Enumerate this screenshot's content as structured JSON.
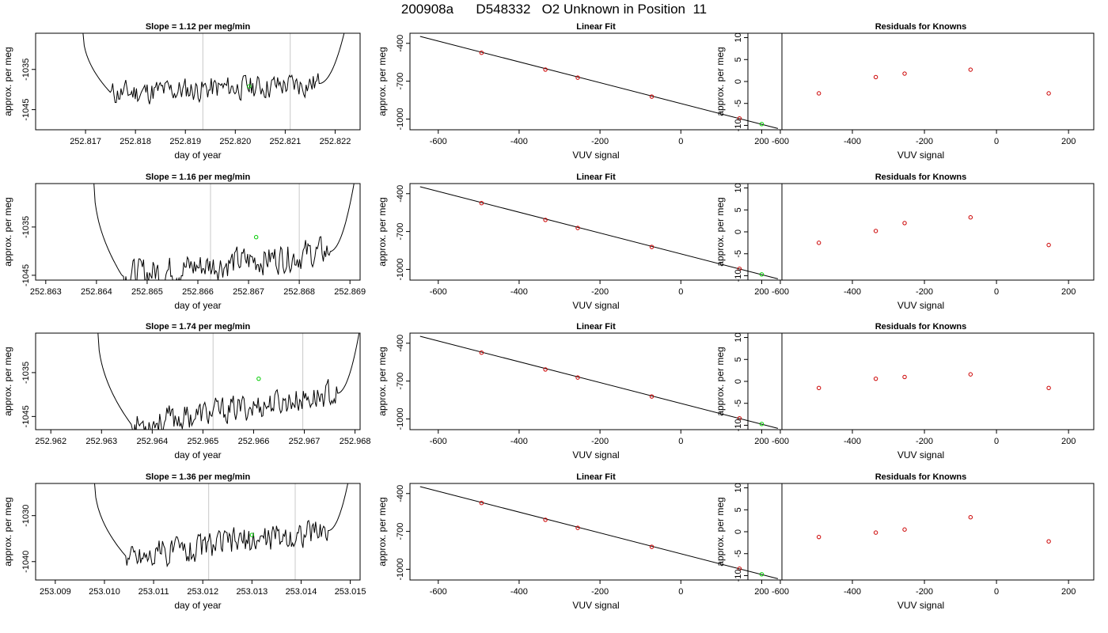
{
  "title": "200908a      D548332   O2 Unknown in Position  11",
  "chart_data": [
    {
      "type": "line",
      "title": "Slope =  1.12  per meg/min",
      "xlabel": "day of year",
      "ylabel": "approx. per meg",
      "xlim": [
        252.816,
        252.8225
      ],
      "ylim": [
        -1050,
        -1026
      ],
      "xticks": [
        "252.817",
        "252.818",
        "252.819",
        "252.820",
        "252.821",
        "252.822"
      ],
      "yticks": [
        "-1045",
        "-1035"
      ],
      "vlines": [
        252.81935,
        252.8211
      ],
      "trace": {
        "x0": 252.81695,
        "x1": 252.82218,
        "start_y": -1026,
        "settle_x": 252.81752,
        "settle_y": -1041,
        "end_x": 252.82168,
        "end_y": -1040,
        "slope_per_unit": 600
      },
      "marker": {
        "x": 252.82028,
        "y": -1039.2
      }
    },
    {
      "type": "scatter",
      "title": "Linear Fit",
      "xlabel": "VUV signal",
      "ylabel": "approx. per meg",
      "xlim": [
        -670,
        250
      ],
      "ylim": [
        -1085,
        -320
      ],
      "xticks": [
        -600,
        -400,
        -200,
        0,
        200
      ],
      "yticks": [
        -400,
        -700,
        -1000
      ],
      "line": {
        "x": [
          -645,
          240
        ],
        "y": [
          -345,
          -1075
        ]
      },
      "points": [
        {
          "x": -493,
          "y": -475
        },
        {
          "x": -335,
          "y": -608
        },
        {
          "x": -255,
          "y": -672
        },
        {
          "x": -72,
          "y": -822
        },
        {
          "x": 145,
          "y": -995
        }
      ],
      "unknown": {
        "x": 200,
        "y": -1040
      }
    },
    {
      "type": "scatter",
      "title": "Residuals for Knowns",
      "xlabel": "VUV signal",
      "ylabel": "approx. per meg",
      "xlim": [
        -690,
        270
      ],
      "ylim": [
        -11,
        11
      ],
      "xticks": [
        -600,
        -400,
        -200,
        0,
        200
      ],
      "yticks": [
        10,
        5,
        0,
        -5,
        -10
      ],
      "points": [
        {
          "x": -493,
          "y": -2.7
        },
        {
          "x": -335,
          "y": 1.0
        },
        {
          "x": -255,
          "y": 1.8
        },
        {
          "x": -72,
          "y": 2.7
        },
        {
          "x": 145,
          "y": -2.7
        }
      ]
    },
    {
      "type": "line",
      "title": "Slope =  1.16  per meg/min",
      "xlabel": "day of year",
      "ylabel": "approx. per meg",
      "xlim": [
        252.8628,
        252.8692
      ],
      "ylim": [
        -1046,
        -1026
      ],
      "xticks": [
        "252.863",
        "252.864",
        "252.865",
        "252.866",
        "252.867",
        "252.868",
        "252.869"
      ],
      "yticks": [
        "-1045",
        "-1035"
      ],
      "vlines": [
        252.86625,
        252.868
      ],
      "trace": {
        "x0": 252.86395,
        "x1": 252.86908,
        "start_y": -1026,
        "settle_x": 252.8645,
        "settle_y": -1045,
        "end_x": 252.8686,
        "end_y": -1036.5,
        "slope_per_unit": 1200
      },
      "marker": {
        "x": 252.86715,
        "y": -1037.1
      }
    },
    {
      "type": "scatter",
      "title": "Linear Fit",
      "xlabel": "VUV signal",
      "ylabel": "approx. per meg",
      "xlim": [
        -670,
        250
      ],
      "ylim": [
        -1085,
        -320
      ],
      "xticks": [
        -600,
        -400,
        -200,
        0,
        200
      ],
      "yticks": [
        -400,
        -700,
        -1000
      ],
      "line": {
        "x": [
          -645,
          240
        ],
        "y": [
          -345,
          -1075
        ]
      },
      "points": [
        {
          "x": -493,
          "y": -475
        },
        {
          "x": -335,
          "y": -608
        },
        {
          "x": -255,
          "y": -672
        },
        {
          "x": -72,
          "y": -822
        },
        {
          "x": 145,
          "y": -995
        }
      ],
      "unknown": {
        "x": 200,
        "y": -1040
      }
    },
    {
      "type": "scatter",
      "title": "Residuals for Knowns",
      "xlabel": "VUV signal",
      "ylabel": "approx. per meg",
      "xlim": [
        -690,
        270
      ],
      "ylim": [
        -11,
        11
      ],
      "xticks": [
        -600,
        -400,
        -200,
        0,
        200
      ],
      "yticks": [
        10,
        5,
        0,
        -5,
        -10
      ],
      "points": [
        {
          "x": -493,
          "y": -2.5
        },
        {
          "x": -335,
          "y": 0.2
        },
        {
          "x": -255,
          "y": 2.0
        },
        {
          "x": -72,
          "y": 3.3
        },
        {
          "x": 145,
          "y": -3.0
        }
      ]
    },
    {
      "type": "line",
      "title": "Slope =  1.74  per meg/min",
      "xlabel": "day of year",
      "ylabel": "approx. per meg",
      "xlim": [
        252.9617,
        252.9681
      ],
      "ylim": [
        -1048,
        -1026
      ],
      "xticks": [
        "252.962",
        "252.963",
        "252.964",
        "252.965",
        "252.966",
        "252.967",
        "252.968"
      ],
      "yticks": [
        "-1045",
        "-1035"
      ],
      "vlines": [
        252.9652,
        252.96697
      ],
      "trace": {
        "x0": 252.96293,
        "x1": 252.96808,
        "start_y": -1026,
        "settle_x": 252.9636,
        "settle_y": -1047,
        "end_x": 252.96765,
        "end_y": -1034.5,
        "slope_per_unit": 1800
      },
      "marker": {
        "x": 252.9661,
        "y": -1036.4
      }
    },
    {
      "type": "scatter",
      "title": "Linear Fit",
      "xlabel": "VUV signal",
      "ylabel": "approx. per meg",
      "xlim": [
        -670,
        250
      ],
      "ylim": [
        -1085,
        -320
      ],
      "xticks": [
        -600,
        -400,
        -200,
        0,
        200
      ],
      "yticks": [
        -400,
        -700,
        -1000
      ],
      "line": {
        "x": [
          -645,
          240
        ],
        "y": [
          -345,
          -1075
        ]
      },
      "points": [
        {
          "x": -493,
          "y": -475
        },
        {
          "x": -335,
          "y": -608
        },
        {
          "x": -255,
          "y": -672
        },
        {
          "x": -72,
          "y": -822
        },
        {
          "x": 145,
          "y": -995
        }
      ],
      "unknown": {
        "x": 200,
        "y": -1040
      }
    },
    {
      "type": "scatter",
      "title": "Residuals for Knowns",
      "xlabel": "VUV signal",
      "ylabel": "approx. per meg",
      "xlim": [
        -690,
        270
      ],
      "ylim": [
        -11,
        11
      ],
      "xticks": [
        -600,
        -400,
        -200,
        0,
        200
      ],
      "yticks": [
        10,
        5,
        0,
        -5,
        -10
      ],
      "points": [
        {
          "x": -493,
          "y": -1.5
        },
        {
          "x": -335,
          "y": 0.6
        },
        {
          "x": -255,
          "y": 1.0
        },
        {
          "x": -72,
          "y": 1.6
        },
        {
          "x": 145,
          "y": -1.5
        }
      ]
    },
    {
      "type": "line",
      "title": "Slope =  1.36  per meg/min",
      "xlabel": "day of year",
      "ylabel": "approx. per meg",
      "xlim": [
        253.0086,
        253.0152
      ],
      "ylim": [
        -1044,
        -1023
      ],
      "xticks": [
        "253.009",
        "253.010",
        "253.011",
        "253.012",
        "253.013",
        "253.014",
        "253.015"
      ],
      "yticks": [
        "-1040",
        "-1030"
      ],
      "vlines": [
        253.01212,
        253.01388
      ],
      "trace": {
        "x0": 253.0098,
        "x1": 253.01495,
        "start_y": -1023,
        "settle_x": 253.01045,
        "settle_y": -1039,
        "end_x": 253.01455,
        "end_y": -1032.5,
        "slope_per_unit": 1400
      },
      "marker": {
        "x": 253.013,
        "y": -1034.2
      }
    },
    {
      "type": "scatter",
      "title": "Linear Fit",
      "xlabel": "VUV signal",
      "ylabel": "approx. per meg",
      "xlim": [
        -670,
        250
      ],
      "ylim": [
        -1085,
        -320
      ],
      "xticks": [
        -600,
        -400,
        -200,
        0,
        200
      ],
      "yticks": [
        -400,
        -700,
        -1000
      ],
      "line": {
        "x": [
          -645,
          240
        ],
        "y": [
          -345,
          -1075
        ]
      },
      "points": [
        {
          "x": -493,
          "y": -475
        },
        {
          "x": -335,
          "y": -608
        },
        {
          "x": -255,
          "y": -672
        },
        {
          "x": -72,
          "y": -822
        },
        {
          "x": 145,
          "y": -995
        }
      ],
      "unknown": {
        "x": 200,
        "y": -1040
      }
    },
    {
      "type": "scatter",
      "title": "Residuals for Knowns",
      "xlabel": "VUV signal",
      "ylabel": "approx. per meg",
      "xlim": [
        -690,
        270
      ],
      "ylim": [
        -11,
        11
      ],
      "xticks": [
        -600,
        -400,
        -200,
        0,
        200
      ],
      "yticks": [
        10,
        5,
        0,
        -5,
        -10
      ],
      "points": [
        {
          "x": -493,
          "y": -1.2
        },
        {
          "x": -335,
          "y": -0.2
        },
        {
          "x": -255,
          "y": 0.5
        },
        {
          "x": -72,
          "y": 3.3
        },
        {
          "x": 145,
          "y": -2.2
        }
      ]
    }
  ]
}
